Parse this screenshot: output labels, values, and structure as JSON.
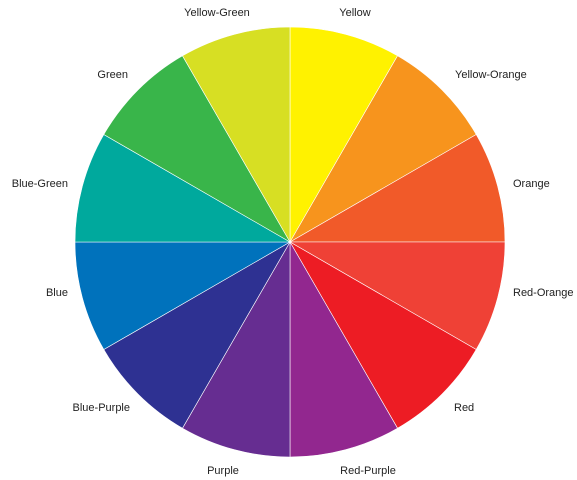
{
  "color_wheel": {
    "segments": [
      {
        "label": "Yellow",
        "color": "#fff200"
      },
      {
        "label": "Yellow-Orange",
        "color": "#f7941d"
      },
      {
        "label": "Orange",
        "color": "#f15a29"
      },
      {
        "label": "Red-Orange",
        "color": "#ef4136"
      },
      {
        "label": "Red",
        "color": "#ed1c24"
      },
      {
        "label": "Red-Purple",
        "color": "#92278f"
      },
      {
        "label": "Purple",
        "color": "#662d91"
      },
      {
        "label": "Blue-Purple",
        "color": "#2e3192"
      },
      {
        "label": "Blue",
        "color": "#0072bc"
      },
      {
        "label": "Blue-Green",
        "color": "#00a99d"
      },
      {
        "label": "Green",
        "color": "#39b54a"
      },
      {
        "label": "Yellow-Green",
        "color": "#d7df23"
      }
    ]
  }
}
